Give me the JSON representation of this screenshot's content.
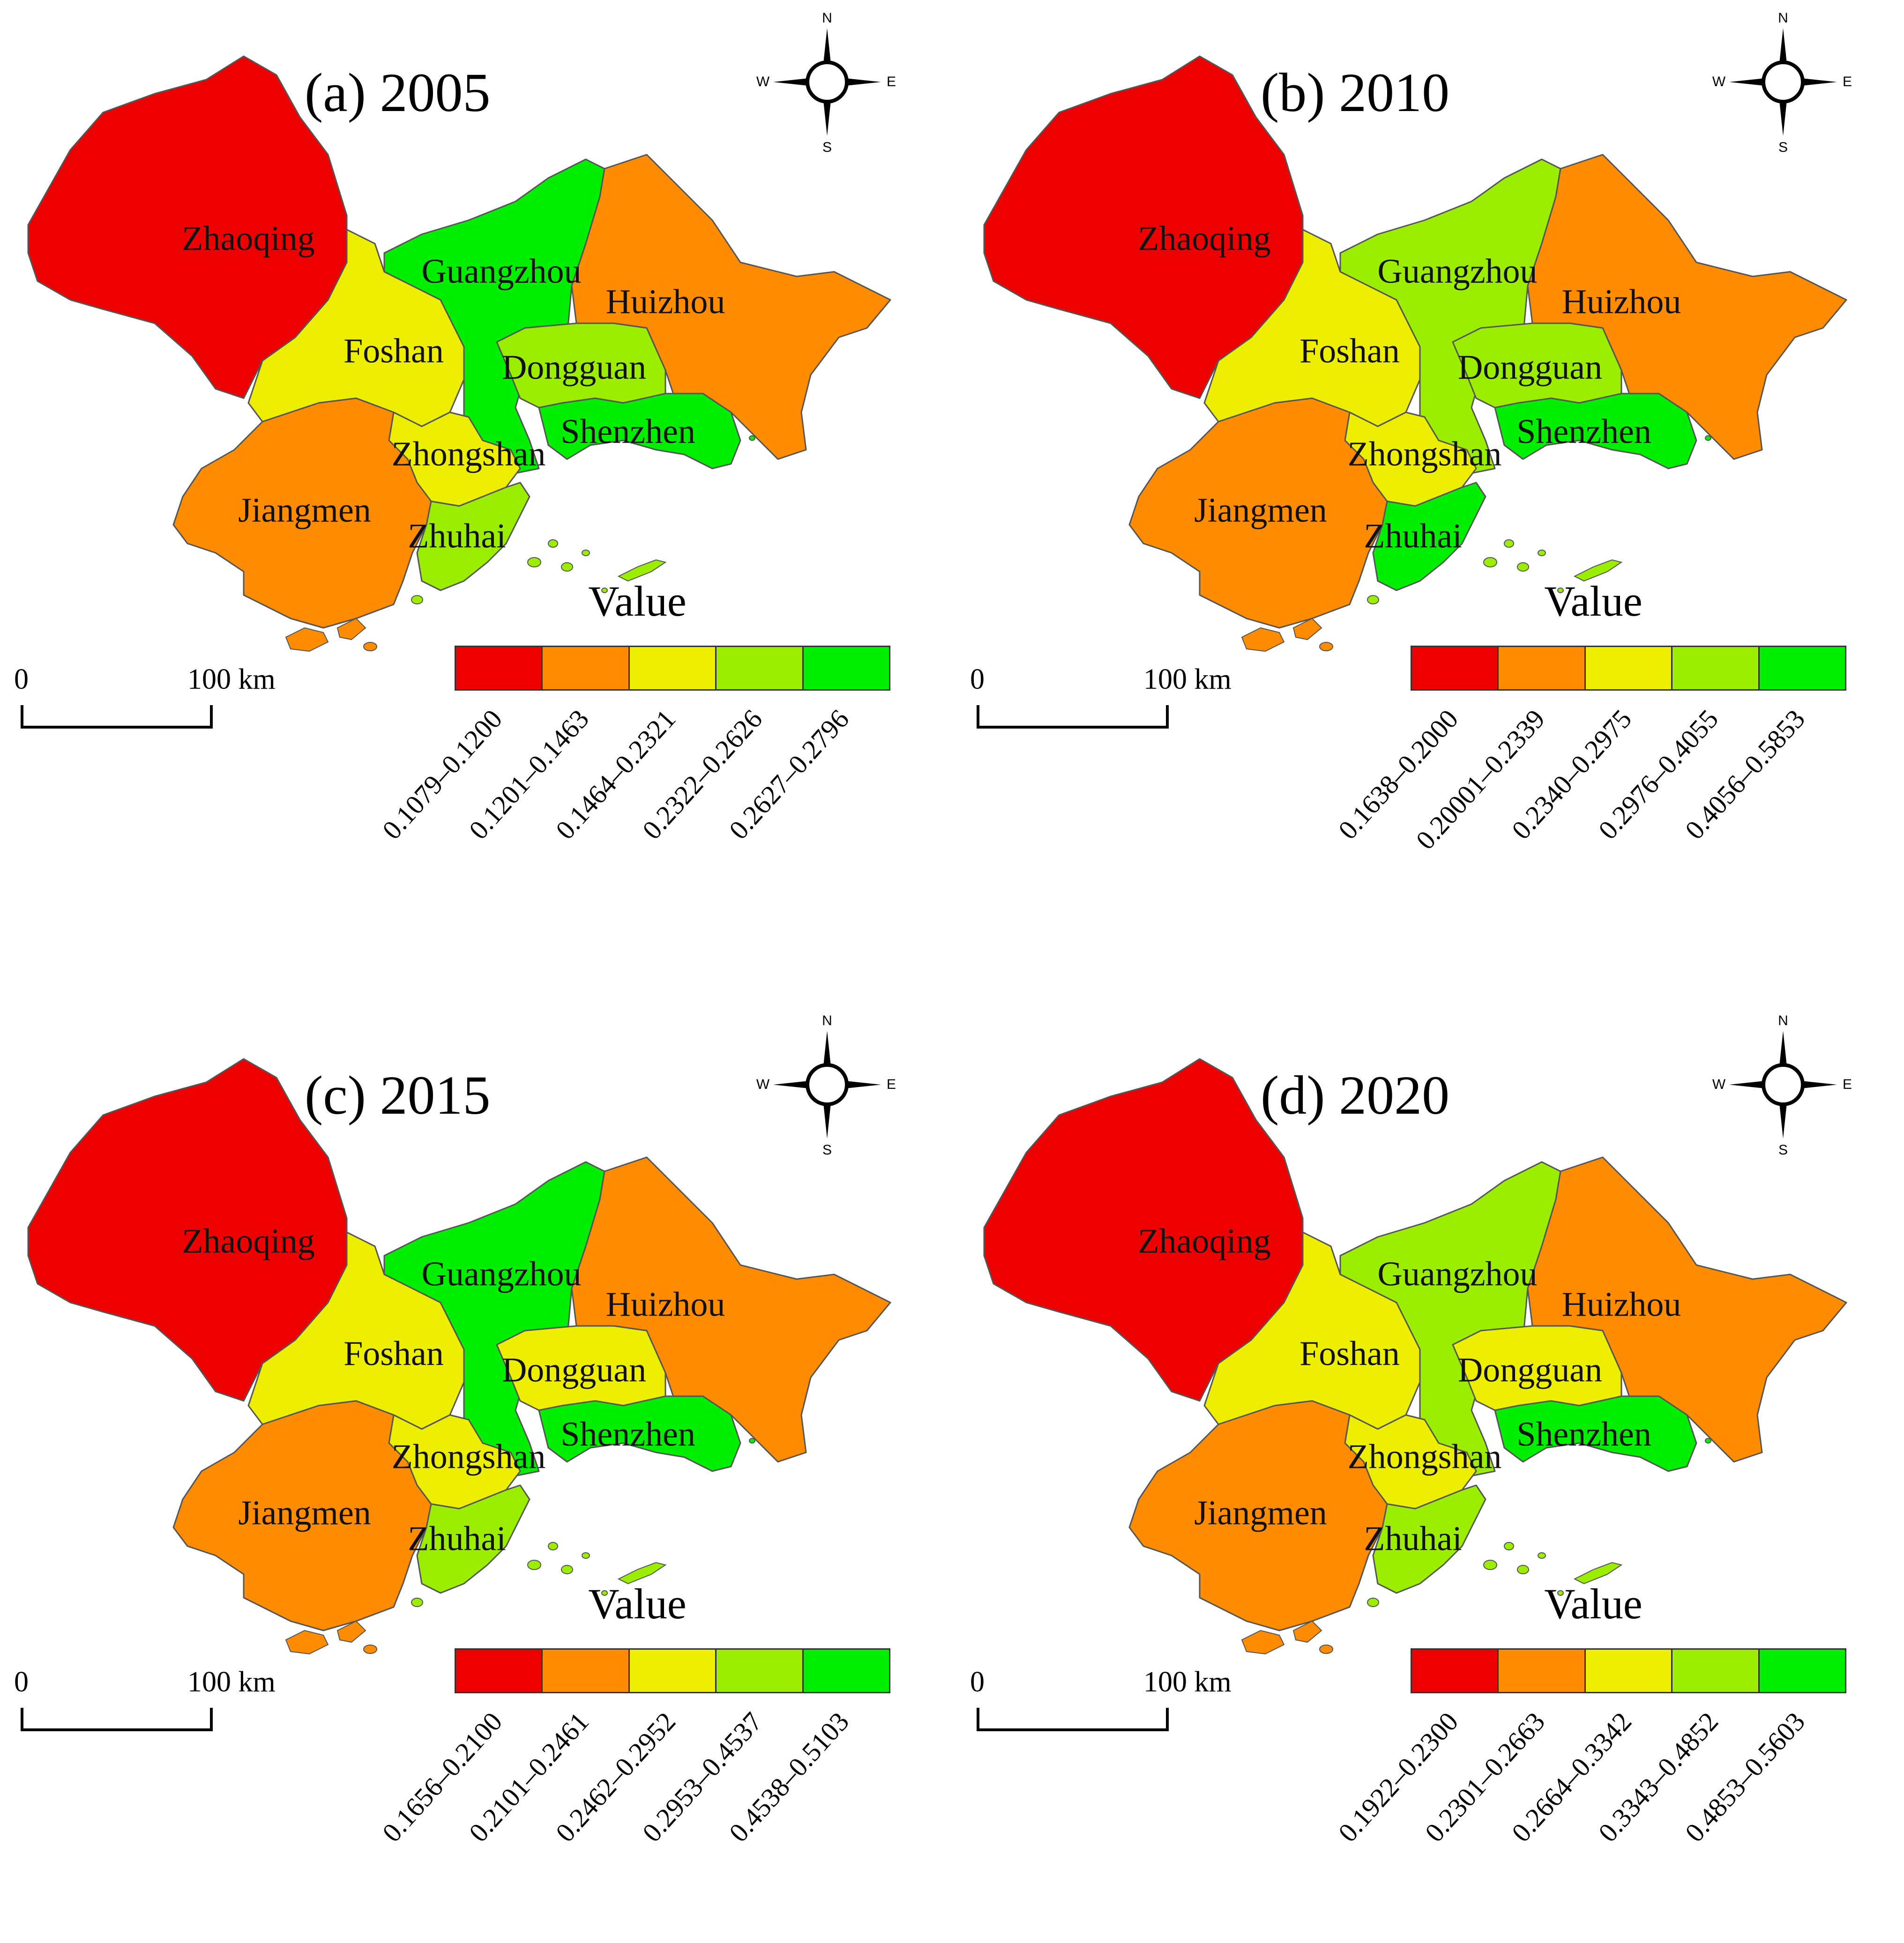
{
  "figure": {
    "panels": [
      {
        "title": "(a) 2005",
        "legend_title": "Value",
        "ranges": [
          "0.1079‒0.1200",
          "0.1201‒0.1463",
          "0.1464‒0.2321",
          "0.2322‒0.2626",
          "0.2627‒0.2796"
        ],
        "city_classes": {
          "Zhaoqing": 0,
          "Foshan": 2,
          "Guangzhou": 4,
          "Huizhou": 1,
          "Dongguan": 3,
          "Shenzhen": 4,
          "Zhongshan": 2,
          "Jiangmen": 1,
          "Zhuhai": 3
        }
      },
      {
        "title": "(b) 2010",
        "legend_title": "Value",
        "ranges": [
          "0.1638‒0.2000",
          "0.20001‒0.2339",
          "0.2340‒0.2975",
          "0.2976‒0.4055",
          "0.4056‒0.5853"
        ],
        "city_classes": {
          "Zhaoqing": 0,
          "Foshan": 2,
          "Guangzhou": 3,
          "Huizhou": 1,
          "Dongguan": 3,
          "Shenzhen": 4,
          "Zhongshan": 2,
          "Jiangmen": 1,
          "Zhuhai": 4
        }
      },
      {
        "title": "(c) 2015",
        "legend_title": "Value",
        "ranges": [
          "0.1656‒0.2100",
          "0.2101‒0.2461",
          "0.2462‒0.2952",
          "0.2953‒0.4537",
          "0.4538‒0.5103"
        ],
        "city_classes": {
          "Zhaoqing": 0,
          "Foshan": 2,
          "Guangzhou": 4,
          "Huizhou": 1,
          "Dongguan": 2,
          "Shenzhen": 4,
          "Zhongshan": 2,
          "Jiangmen": 1,
          "Zhuhai": 3
        }
      },
      {
        "title": "(d) 2020",
        "legend_title": "Value",
        "ranges": [
          "0.1922‒0.2300",
          "0.2301‒0.2663",
          "0.2664‒0.3342",
          "0.3343‒0.4852",
          "0.4853‒0.5603"
        ],
        "city_classes": {
          "Zhaoqing": 0,
          "Foshan": 2,
          "Guangzhou": 3,
          "Huizhou": 1,
          "Dongguan": 2,
          "Shenzhen": 4,
          "Zhongshan": 2,
          "Jiangmen": 1,
          "Zhuhai": 3
        }
      }
    ],
    "class_colors": [
      "#ee0000",
      "#ff8c00",
      "#eeee00",
      "#9bee00",
      "#00ee00"
    ],
    "cities": [
      "Zhaoqing",
      "Foshan",
      "Guangzhou",
      "Huizhou",
      "Dongguan",
      "Shenzhen",
      "Zhongshan",
      "Jiangmen",
      "Zhuhai"
    ],
    "scale_bar": {
      "zero": "0",
      "distance": "100 km"
    },
    "compass": {
      "n": "N",
      "s": "S",
      "e": "E",
      "w": "W"
    }
  }
}
